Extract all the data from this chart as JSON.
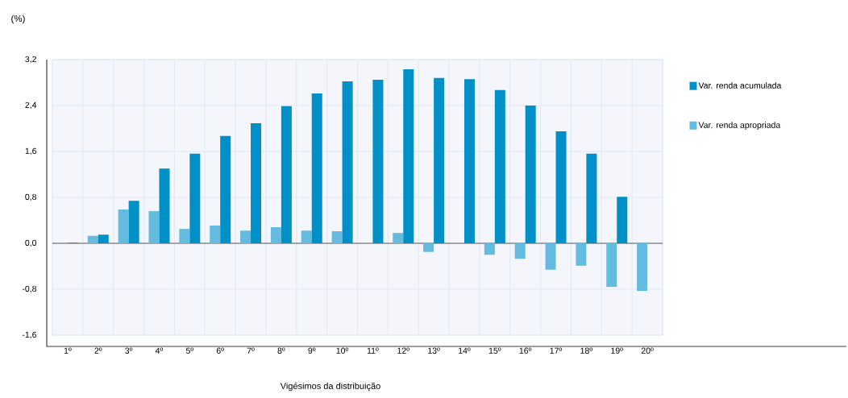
{
  "chart_data": {
    "type": "bar",
    "ylabel": "(%)",
    "xlabel": "Vigésimos da distribuição",
    "categories": [
      "1º",
      "2º",
      "3º",
      "4º",
      "5º",
      "6º",
      "7º",
      "8º",
      "9º",
      "10º",
      "11º",
      "12º",
      "13º",
      "14º",
      "15º",
      "16º",
      "17º",
      "18º",
      "19º",
      "20º"
    ],
    "series": [
      {
        "name": "Var. renda apropriada",
        "color": "#63bbdf",
        "values": [
          0.01,
          0.13,
          0.59,
          0.56,
          0.25,
          0.31,
          0.22,
          0.28,
          0.22,
          0.21,
          0.01,
          0.18,
          -0.15,
          0.01,
          -0.2,
          -0.27,
          -0.46,
          -0.39,
          -0.76,
          -0.83
        ]
      },
      {
        "name": "Var. renda acumulada",
        "color": "#0090c8",
        "values": [
          0.01,
          0.15,
          0.74,
          1.3,
          1.56,
          1.87,
          2.09,
          2.39,
          2.61,
          2.82,
          2.85,
          3.03,
          2.88,
          2.86,
          2.67,
          2.4,
          1.95,
          1.56,
          0.81,
          0
        ]
      }
    ],
    "ylim": [
      -1.6,
      3.2
    ],
    "yticks": [
      {
        "value": -1.6,
        "label": "-1,6"
      },
      {
        "value": -0.8,
        "label": "-0,8"
      },
      {
        "value": 0,
        "label": "0,0"
      },
      {
        "value": 0.8,
        "label": "0,8"
      },
      {
        "value": 1.6,
        "label": "1,6"
      },
      {
        "value": 2.4,
        "label": "2,4"
      },
      {
        "value": 3.2,
        "label": "3,2"
      }
    ],
    "grid": true,
    "legend": "right"
  }
}
